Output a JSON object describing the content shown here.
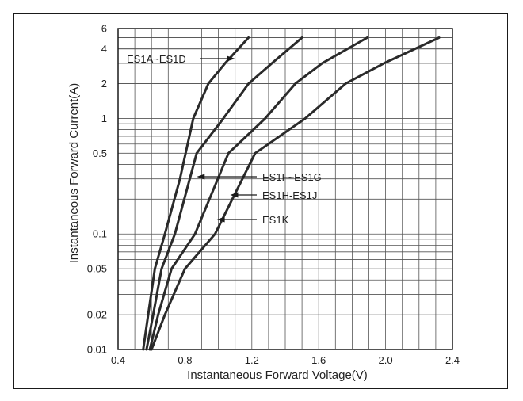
{
  "chart_data": {
    "type": "line",
    "xlabel": "Instantaneous Forward Voltage(V)",
    "ylabel": "Instantaneous Forward Current(A)",
    "x_scale": "linear",
    "y_scale": "log",
    "xlim": [
      0.4,
      2.4
    ],
    "ylim": [
      0.01,
      6
    ],
    "x_ticks": [
      0.4,
      0.8,
      1.2,
      1.6,
      2.0,
      2.4
    ],
    "x_tick_labels": [
      "0.4",
      "0.8",
      "1.2",
      "1.6",
      "2.0",
      "2.4"
    ],
    "y_ticks": [
      0.01,
      0.02,
      0.05,
      0.1,
      0.5,
      1,
      2,
      4,
      6
    ],
    "y_tick_labels": [
      "0.01",
      "0.02",
      "0.05",
      "0.1",
      "0.5",
      "1",
      "2",
      "4",
      "6"
    ],
    "grid": true,
    "series": [
      {
        "name": "ES1A~ES1D",
        "x": [
          0.55,
          0.58,
          0.62,
          0.68,
          0.77,
          0.85,
          0.94,
          1.04,
          1.18
        ],
        "y": [
          0.01,
          0.02,
          0.05,
          0.1,
          0.3,
          1,
          2,
          3,
          5
        ]
      },
      {
        "name": "ES1F~ES1G",
        "x": [
          0.57,
          0.61,
          0.66,
          0.74,
          0.87,
          1.03,
          1.18,
          1.32,
          1.5
        ],
        "y": [
          0.01,
          0.02,
          0.05,
          0.1,
          0.5,
          1,
          2,
          3,
          5
        ]
      },
      {
        "name": "ES1H-ES1J",
        "x": [
          0.59,
          0.64,
          0.72,
          0.86,
          1.06,
          1.28,
          1.46,
          1.62,
          1.89
        ],
        "y": [
          0.01,
          0.02,
          0.05,
          0.1,
          0.5,
          1,
          2,
          3,
          5
        ]
      },
      {
        "name": "ES1K",
        "x": [
          0.6,
          0.68,
          0.8,
          0.98,
          1.22,
          1.52,
          1.76,
          1.99,
          2.32
        ],
        "y": [
          0.01,
          0.02,
          0.05,
          0.1,
          0.5,
          1,
          2,
          3,
          5
        ]
      }
    ],
    "annotations": [
      {
        "text": "ES1A~ES1D",
        "series": "ES1A~ES1D",
        "arrow_to": [
          1.08,
          4
        ]
      },
      {
        "text": "ES1F~ES1G",
        "series": "ES1F~ES1G",
        "arrow_to": [
          0.88,
          0.4
        ]
      },
      {
        "text": "ES1H-ES1J",
        "series": "ES1H-ES1J",
        "arrow_to": [
          1.08,
          0.28
        ]
      },
      {
        "text": "ES1K",
        "series": "ES1K",
        "arrow_to": [
          1.0,
          0.16
        ]
      }
    ]
  }
}
